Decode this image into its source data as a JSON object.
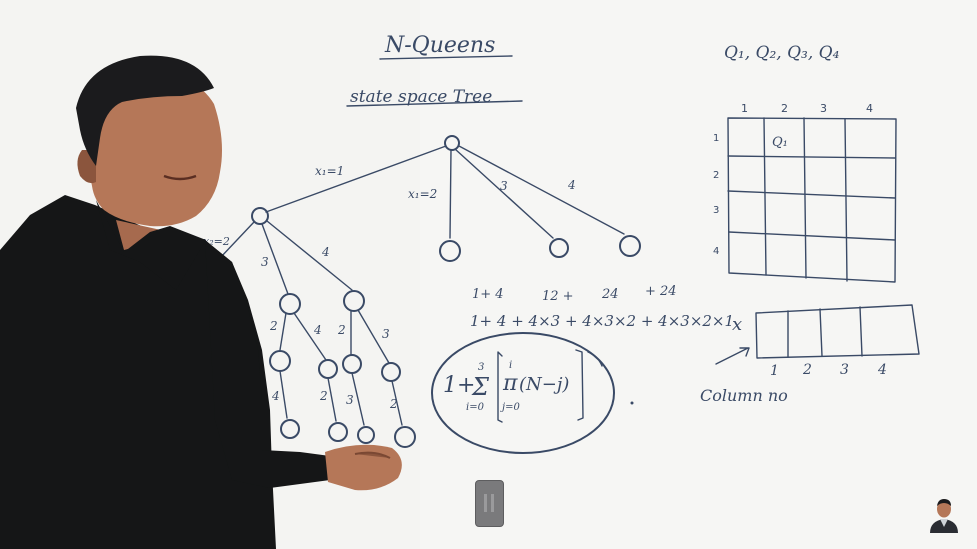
{
  "board": {
    "title": "N-Queens",
    "subtitle": "state space Tree",
    "queens": "Q₁, Q₂, Q₃, Q₄",
    "grid_cols": [
      "1",
      "2",
      "3",
      "4"
    ],
    "grid_rows": [
      "1",
      "2",
      "3",
      "4"
    ],
    "grid_queen": "Q₁",
    "tree_root_edge": "x₁=1",
    "tree_edge_x1_2": "x₁=2",
    "tree_edge_3": "3",
    "tree_edge_4": "4",
    "tree_edge_x2_2": "x₂=2",
    "tree_l2_a": "3",
    "tree_l2_b": "4",
    "tree_l3_a": "2",
    "tree_l3_b": "4",
    "tree_l3_c": "2",
    "tree_l3_d": "3",
    "tree_l4_a": "4",
    "tree_l4_b": "2",
    "tree_l4_c": "3",
    "tree_l4_d": "2",
    "sum_line1_a": "1+ 4",
    "sum_line1_b": "12  +",
    "sum_line1_c": "24",
    "sum_line1_d": "+ 24",
    "sum_line2": "1+ 4 + 4×3 + 4×3×2 + 4×3×2×1",
    "formula_prefix": "1+",
    "formula_sigma": "Σ",
    "formula_upper": "3",
    "formula_lower": "i=0",
    "formula_pi": "π",
    "formula_pi_upper": "i",
    "formula_pi_lower": "j=0",
    "formula_term": "(N−j)",
    "array_label": "x",
    "array_cols": [
      "1",
      "2",
      "3",
      "4"
    ],
    "column_label": "Column no"
  },
  "player": {
    "pause_icon": "pause-icon",
    "avatar_icon": "presenter-avatar-icon"
  }
}
